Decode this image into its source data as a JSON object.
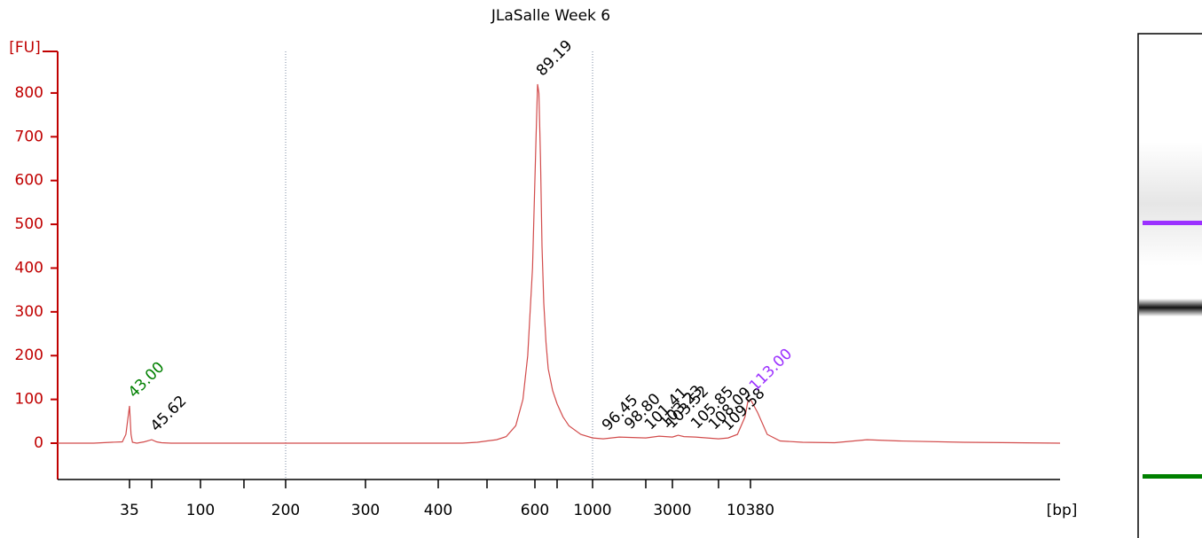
{
  "chart_data": {
    "type": "line",
    "title": "JLaSalle Week 6",
    "ylabel": "[FU]",
    "xlabel": "[bp]",
    "x": [
      15,
      25,
      30,
      33,
      34,
      35,
      36,
      37,
      40,
      45,
      50,
      55,
      60,
      70,
      100,
      200,
      300,
      400,
      450,
      480,
      500,
      520,
      540,
      560,
      575,
      585,
      595,
      605,
      612,
      618,
      625,
      632,
      640,
      650,
      660,
      680,
      700,
      750,
      800,
      900,
      1000,
      1200,
      1500,
      2000,
      2500,
      3000,
      3500,
      4000,
      5000,
      6000,
      7000,
      8000,
      9000,
      9800,
      10100,
      10380,
      10600,
      10900,
      11300,
      12000,
      13000,
      14000,
      15000,
      17000,
      20000
    ],
    "series": [
      {
        "color": "#d24b4b",
        "values": [
          0,
          0,
          2,
          3,
          20,
          85,
          20,
          2,
          0,
          3,
          8,
          3,
          1,
          0,
          0,
          0,
          0,
          0,
          0,
          2,
          5,
          8,
          15,
          40,
          100,
          200,
          400,
          700,
          820,
          800,
          650,
          450,
          320,
          230,
          170,
          120,
          90,
          60,
          40,
          20,
          12,
          10,
          14,
          12,
          16,
          14,
          18,
          15,
          14,
          12,
          10,
          12,
          20,
          60,
          95,
          100,
          70,
          20,
          5,
          2,
          1,
          8,
          5,
          2,
          0
        ]
      }
    ],
    "xlim": [
      15,
      20000
    ],
    "ylim": [
      -83,
      895
    ],
    "xticks": [
      35,
      {
        "value": 50,
        "label": null
      },
      100,
      {
        "value": 150,
        "label": null
      },
      200,
      300,
      400,
      {
        "value": 500,
        "label": null
      },
      600,
      {
        "value": 700,
        "label": null
      },
      1000,
      {
        "value": 2000,
        "label": null
      },
      3000,
      {
        "value": 7000,
        "label": null
      },
      10380
    ],
    "yticks": [
      0,
      100,
      200,
      300,
      400,
      500,
      600,
      700,
      800
    ],
    "xgrid": [
      200,
      1000
    ],
    "peaks": [
      {
        "label": "43.00",
        "x": 35,
        "y": 85,
        "color": "#008000"
      },
      {
        "label": "45.62",
        "x": 50,
        "y": 8,
        "color": "#000000"
      },
      {
        "label": "89.19",
        "x": 612,
        "y": 820,
        "color": "#000000"
      },
      {
        "label": "96.45",
        "x": 1200,
        "y": 10,
        "color": "#000000"
      },
      {
        "label": "98.80",
        "x": 1620,
        "y": 13,
        "color": "#000000"
      },
      {
        "label": "101.41",
        "x": 2000,
        "y": 12,
        "color": "#000000"
      },
      {
        "label": "103.23",
        "x": 2570,
        "y": 16,
        "color": "#000000"
      },
      {
        "label": "103.52",
        "x": 2800,
        "y": 15,
        "color": "#000000"
      },
      {
        "label": "105.85",
        "x": 4700,
        "y": 14,
        "color": "#000000"
      },
      {
        "label": "108.09",
        "x": 6230,
        "y": 12,
        "color": "#000000"
      },
      {
        "label": "109.58",
        "x": 7500,
        "y": 10,
        "color": "#000000"
      },
      {
        "label": "113.00",
        "x": 10380,
        "y": 100,
        "color": "#9b30ff"
      }
    ]
  }
}
